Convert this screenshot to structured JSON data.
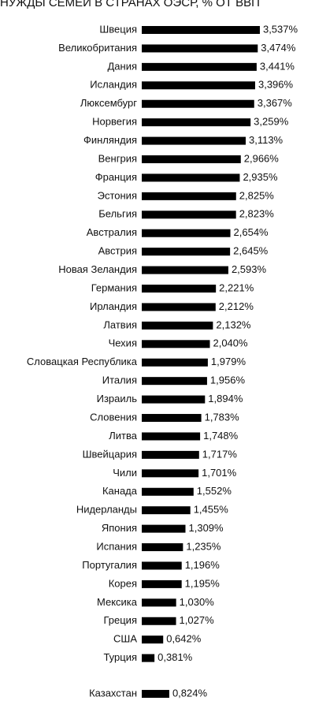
{
  "chart_data": {
    "type": "bar",
    "orientation": "horizontal",
    "title": "НУЖДЫ СЕМЕЙ В СТРАНАХ ОЭСР, % ОТ ВВП",
    "categories": [
      "Швеция",
      "Великобритания",
      "Дания",
      "Исландия",
      "Люксембург",
      "Норвегия",
      "Финляндия",
      "Венгрия",
      "Франция",
      "Эстония",
      "Бельгия",
      "Австралия",
      "Австрия",
      "Новая Зеландия",
      "Германия",
      "Ирландия",
      "Латвия",
      "Чехия",
      "Словацкая Республика",
      "Италия",
      "Израиль",
      "Словения",
      "Литва",
      "Швейцария",
      "Чили",
      "Канада",
      "Нидерланды",
      "Япония",
      "Испания",
      "Португалия",
      "Корея",
      "Мексика",
      "Греция",
      "США",
      "Турция",
      "Казахстан"
    ],
    "values": [
      3.537,
      3.474,
      3.441,
      3.396,
      3.367,
      3.259,
      3.113,
      2.966,
      2.935,
      2.825,
      2.823,
      2.654,
      2.645,
      2.593,
      2.221,
      2.212,
      2.132,
      2.04,
      1.979,
      1.956,
      1.894,
      1.783,
      1.748,
      1.717,
      1.701,
      1.552,
      1.455,
      1.309,
      1.235,
      1.196,
      1.195,
      1.03,
      1.027,
      0.642,
      0.381,
      0.824
    ],
    "value_labels": [
      "3,537%",
      "3,474%",
      "3,441%",
      "3,396%",
      "3,367%",
      "3,259%",
      "3,113%",
      "2,966%",
      "2,935%",
      "2,825%",
      "2,823%",
      "2,654%",
      "2,645%",
      "2,593%",
      "2,221%",
      "2,212%",
      "2,132%",
      "2,040%",
      "1,979%",
      "1,956%",
      "1,894%",
      "1,783%",
      "1,748%",
      "1,717%",
      "1,701%",
      "1,552%",
      "1,455%",
      "1,309%",
      "1,235%",
      "1,196%",
      "1,195%",
      "1,030%",
      "1,027%",
      "0,642%",
      "0,381%",
      "0,824%"
    ],
    "color": "#000000"
  }
}
